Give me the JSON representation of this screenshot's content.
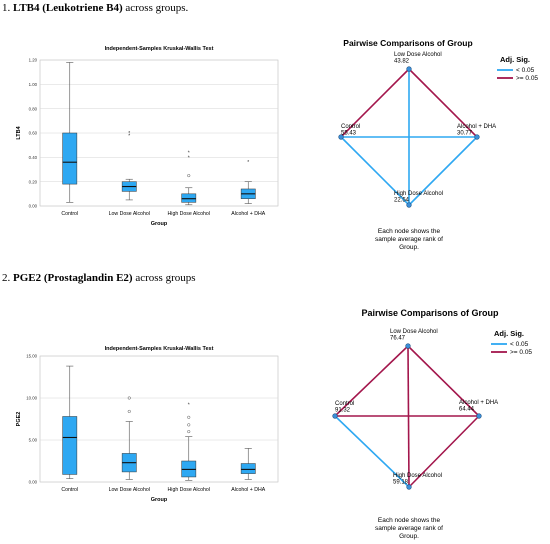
{
  "figure": {
    "section1": {
      "number": "1.",
      "bold": "LTB4 (Leukotriene B4)",
      "rest": "across groups."
    },
    "section2": {
      "number": "2.",
      "bold": "PGE2 (Prostaglandin E2)",
      "rest": "across groups"
    }
  },
  "chart_data": [
    {
      "type": "boxplot",
      "title": "Independent-Samples Kruskal-Wallis Test",
      "xlabel": "Group",
      "ylabel": "LTB4",
      "ylim": [
        0,
        1.2
      ],
      "yticks": [
        "0.00",
        "0.20",
        "0.40",
        "0.60",
        "0.80",
        "1.00",
        "1.20"
      ],
      "categories": [
        "Control",
        "Low Dose Alcohol",
        "High Dose Alcohol",
        "Alcohol + DHA"
      ],
      "boxes": [
        {
          "min": 0.03,
          "q1": 0.18,
          "median": 0.36,
          "q3": 0.6,
          "max": 1.18,
          "outliers": [],
          "extremes": []
        },
        {
          "min": 0.05,
          "q1": 0.12,
          "median": 0.16,
          "q3": 0.2,
          "max": 0.22,
          "outliers": [],
          "extremes": [
            0.58,
            0.6
          ]
        },
        {
          "min": 0.01,
          "q1": 0.03,
          "median": 0.06,
          "q3": 0.1,
          "max": 0.15,
          "outliers": [
            0.25
          ],
          "extremes": [
            0.4,
            0.44
          ]
        },
        {
          "min": 0.02,
          "q1": 0.06,
          "median": 0.1,
          "q3": 0.14,
          "max": 0.2,
          "outliers": [],
          "extremes": [
            0.36
          ]
        }
      ],
      "color": "#2ea8f2"
    },
    {
      "type": "network",
      "title": "Pairwise Comparisons of Group",
      "legend_title": "Adj. Sig.",
      "legend": [
        {
          "label": "< 0.05",
          "color": "#2ea8f2"
        },
        {
          "label": ">= 0.05",
          "color": "#a3164c"
        }
      ],
      "nodes": [
        {
          "name": "Low Dose Alcohol",
          "value": "43.82",
          "pos": "top"
        },
        {
          "name": "Control",
          "value": "55.43",
          "pos": "left"
        },
        {
          "name": "Alcohol + DHA",
          "value": "30.77",
          "pos": "right"
        },
        {
          "name": "High Dose Alcohol",
          "value": "22.54",
          "pos": "bottom"
        }
      ],
      "edges": [
        {
          "from": "top",
          "to": "left",
          "sig": false
        },
        {
          "from": "top",
          "to": "right",
          "sig": false
        },
        {
          "from": "top",
          "to": "bottom",
          "sig": true
        },
        {
          "from": "left",
          "to": "right",
          "sig": true
        },
        {
          "from": "left",
          "to": "bottom",
          "sig": true
        },
        {
          "from": "right",
          "to": "bottom",
          "sig": true
        }
      ],
      "note": [
        "Each node shows the",
        "sample average rank of",
        "Group."
      ]
    },
    {
      "type": "boxplot",
      "title": "Independent-Samples Kruskal-Wallis Test",
      "xlabel": "Group",
      "ylabel": "PGE2",
      "ylim": [
        0,
        15
      ],
      "yticks": [
        "0.00",
        "5.00",
        "10.00",
        "15.00"
      ],
      "categories": [
        "Control",
        "Low Dose Alcohol",
        "High Dose Alcohol",
        "Alcohol + DHA"
      ],
      "boxes": [
        {
          "min": 0.4,
          "q1": 0.9,
          "median": 5.3,
          "q3": 7.8,
          "max": 13.8,
          "outliers": [],
          "extremes": []
        },
        {
          "min": 0.3,
          "q1": 1.2,
          "median": 2.3,
          "q3": 3.4,
          "max": 7.2,
          "outliers": [
            8.4,
            10.0
          ],
          "extremes": []
        },
        {
          "min": 0.2,
          "q1": 0.6,
          "median": 1.5,
          "q3": 2.5,
          "max": 5.4,
          "outliers": [
            6.0,
            6.8,
            7.7
          ],
          "extremes": [
            9.2
          ]
        },
        {
          "min": 0.3,
          "q1": 1.0,
          "median": 1.5,
          "q3": 2.2,
          "max": 4.0,
          "outliers": [],
          "extremes": []
        }
      ],
      "color": "#2ea8f2"
    },
    {
      "type": "network",
      "title": "Pairwise Comparisons of Group",
      "legend_title": "Adj. Sig.",
      "legend": [
        {
          "label": "< 0.05",
          "color": "#2ea8f2"
        },
        {
          "label": ">= 0.05",
          "color": "#a3164c"
        }
      ],
      "nodes": [
        {
          "name": "Low Dose Alcohol",
          "value": "76.47",
          "pos": "top"
        },
        {
          "name": "Control",
          "value": "91.32",
          "pos": "left"
        },
        {
          "name": "Alcohol + DHA",
          "value": "64.44",
          "pos": "right"
        },
        {
          "name": "High Dose Alcohol",
          "value": "59.18",
          "pos": "bottom"
        }
      ],
      "edges": [
        {
          "from": "top",
          "to": "left",
          "sig": false
        },
        {
          "from": "top",
          "to": "right",
          "sig": false
        },
        {
          "from": "top",
          "to": "bottom",
          "sig": false
        },
        {
          "from": "left",
          "to": "right",
          "sig": false
        },
        {
          "from": "left",
          "to": "bottom",
          "sig": true
        },
        {
          "from": "right",
          "to": "bottom",
          "sig": false
        }
      ],
      "note": [
        "Each node shows the",
        "sample average rank of",
        "Group."
      ]
    }
  ]
}
